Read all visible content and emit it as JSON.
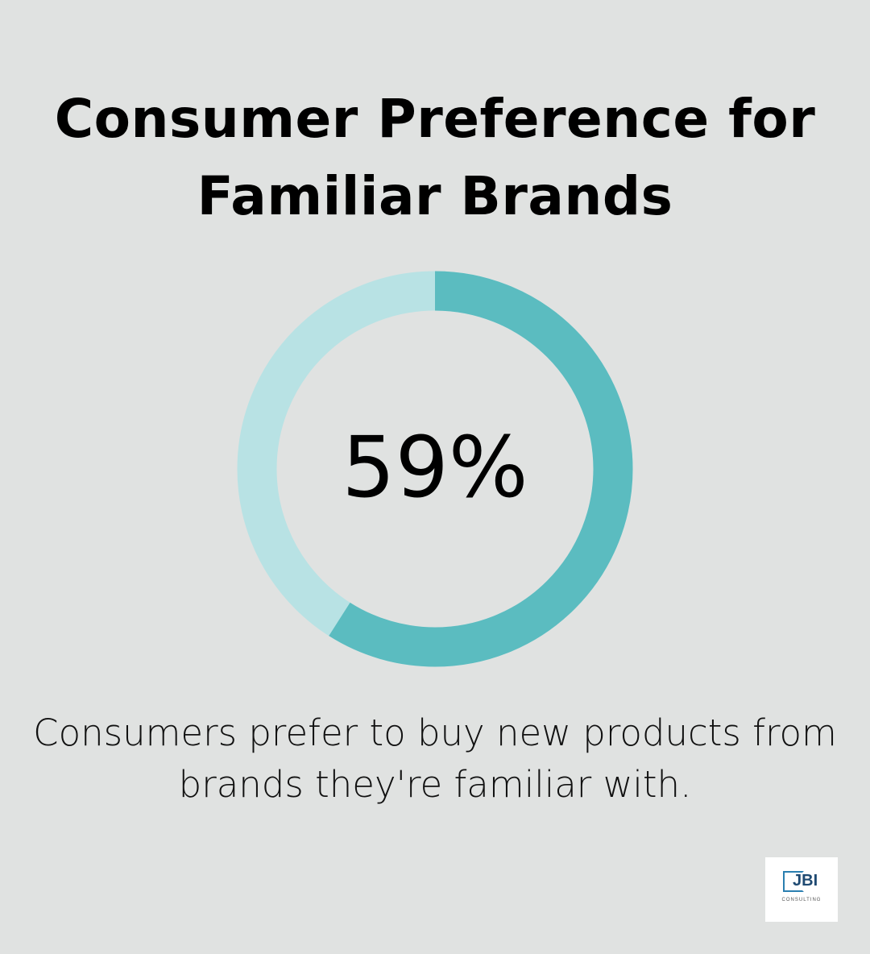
{
  "title_line1": "Consumer Preference for",
  "title_line2": "Familiar Brands",
  "description_line1": "Consumers prefer to buy new products from",
  "description_line2": "brands they're familiar with.",
  "logo": {
    "text": "JBI",
    "subtext": "CONSULTING"
  },
  "chart_data": {
    "type": "pie",
    "variant": "donut",
    "values": [
      59,
      41
    ],
    "center_label": "59%",
    "colors": {
      "value": "#5bbcc0",
      "remainder": "#b8e2e4",
      "background": "#e0e2e1"
    }
  }
}
